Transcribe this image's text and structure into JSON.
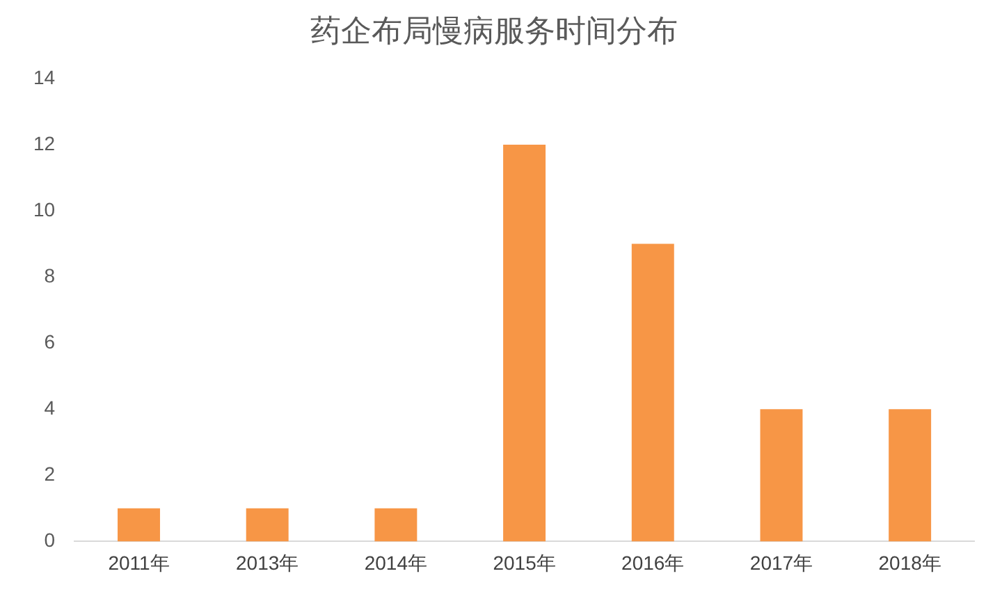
{
  "chart_data": {
    "type": "bar",
    "title": "药企布局慢病服务时间分布",
    "categories": [
      "2011年",
      "2013年",
      "2014年",
      "2015年",
      "2016年",
      "2017年",
      "2018年"
    ],
    "values": [
      1,
      1,
      1,
      12,
      9,
      4,
      4
    ],
    "color": "#f79646",
    "ylim": [
      0,
      14
    ],
    "yticks": [
      0,
      2,
      4,
      6,
      8,
      10,
      12,
      14
    ],
    "grid": false,
    "legend": false
  }
}
